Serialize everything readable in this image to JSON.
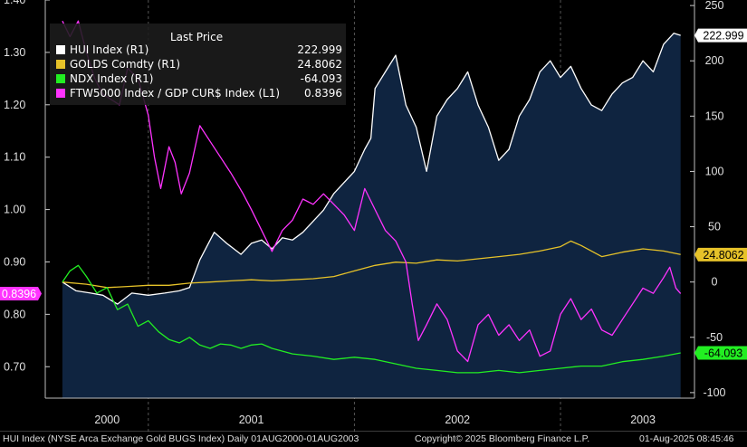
{
  "chart_data": {
    "type": "line",
    "left_axis": {
      "ticks": [
        "1.40",
        "1.30",
        "1.20",
        "1.10",
        "1.00",
        "0.90",
        "0.80",
        "0.70"
      ],
      "ylim": [
        0.64,
        1.4
      ]
    },
    "right_axis": {
      "ticks": [
        "250",
        "200",
        "150",
        "100",
        "50",
        "0",
        "-50",
        "-100"
      ],
      "ylim": [
        -105,
        255
      ]
    },
    "x_labels": [
      "2000",
      "2001",
      "2002",
      "2003"
    ],
    "legend": {
      "header": "Last Price",
      "items": [
        {
          "label": "HUI Index  (R1)",
          "value": "222.999",
          "color": "#ffffff"
        },
        {
          "label": "GOLDS Comdty  (R1)",
          "value": "24.8062",
          "color": "#e6c229"
        },
        {
          "label": "NDX Index  (R1)",
          "value": "-64.093",
          "color": "#22ee22"
        },
        {
          "label": "FTW5000 Index / GDP CUR$ Index  (L1)",
          "value": "0.8396",
          "color": "#ff33ff"
        }
      ]
    },
    "badges": [
      {
        "text": "222.999",
        "bg": "#ffffff",
        "fg": "#000000"
      },
      {
        "text": "24.8062",
        "bg": "#e6c229",
        "fg": "#000000"
      },
      {
        "text": "-64.093",
        "bg": "#22ee22",
        "fg": "#000000"
      },
      {
        "text": "0.8396",
        "bg": "#ff33ff",
        "fg": "#ffffff"
      }
    ],
    "series": [
      {
        "name": "HUI Index",
        "axis": "right",
        "color": "#ffffff",
        "fill": "#0f2440",
        "x": [
          2000.583,
          2000.65,
          2000.72,
          2000.78,
          2000.85,
          2000.92,
          2001.0,
          2001.08,
          2001.15,
          2001.2,
          2001.25,
          2001.32,
          2001.38,
          2001.45,
          2001.5,
          2001.55,
          2001.6,
          2001.65,
          2001.7,
          2001.75,
          2001.8,
          2001.85,
          2001.9,
          2001.95,
          2002.0,
          2002.05,
          2002.08,
          2002.1,
          2002.15,
          2002.2,
          2002.25,
          2002.3,
          2002.35,
          2002.4,
          2002.45,
          2002.5,
          2002.55,
          2002.6,
          2002.65,
          2002.7,
          2002.75,
          2002.8,
          2002.85,
          2002.9,
          2002.95,
          2003.0,
          2003.05,
          2003.1,
          2003.15,
          2003.2,
          2003.25,
          2003.3,
          2003.35,
          2003.4,
          2003.45,
          2003.5,
          2003.55,
          2003.583
        ],
        "y": [
          0,
          -8,
          -10,
          -12,
          -20,
          -10,
          -12,
          -10,
          -8,
          -5,
          20,
          45,
          35,
          25,
          35,
          38,
          30,
          40,
          38,
          45,
          55,
          65,
          80,
          90,
          100,
          120,
          130,
          175,
          190,
          205,
          160,
          140,
          100,
          150,
          165,
          175,
          190,
          160,
          140,
          110,
          120,
          150,
          165,
          190,
          200,
          185,
          195,
          175,
          160,
          155,
          170,
          180,
          185,
          200,
          190,
          215,
          225,
          222.999
        ]
      },
      {
        "name": "GOLDS Comdty",
        "axis": "right",
        "color": "#e6c229",
        "x": [
          2000.583,
          2000.7,
          2000.8,
          2000.9,
          2001.0,
          2001.1,
          2001.2,
          2001.3,
          2001.4,
          2001.5,
          2001.6,
          2001.7,
          2001.8,
          2001.9,
          2002.0,
          2002.1,
          2002.2,
          2002.3,
          2002.4,
          2002.5,
          2002.6,
          2002.7,
          2002.8,
          2002.9,
          2003.0,
          2003.05,
          2003.1,
          2003.2,
          2003.3,
          2003.4,
          2003.5,
          2003.583
        ],
        "y": [
          0,
          -2,
          -5,
          -4,
          -3,
          -3,
          -1,
          0,
          1,
          2,
          1,
          2,
          3,
          5,
          10,
          15,
          18,
          17,
          20,
          19,
          21,
          23,
          25,
          28,
          32,
          37,
          33,
          23,
          27,
          30,
          28,
          24.8062
        ]
      },
      {
        "name": "NDX Index",
        "axis": "right",
        "color": "#22ee22",
        "x": [
          2000.583,
          2000.62,
          2000.66,
          2000.7,
          2000.75,
          2000.8,
          2000.85,
          2000.9,
          2000.95,
          2001.0,
          2001.05,
          2001.1,
          2001.15,
          2001.2,
          2001.25,
          2001.3,
          2001.35,
          2001.4,
          2001.45,
          2001.5,
          2001.55,
          2001.6,
          2001.7,
          2001.8,
          2001.9,
          2002.0,
          2002.1,
          2002.2,
          2002.3,
          2002.4,
          2002.5,
          2002.6,
          2002.7,
          2002.8,
          2002.9,
          2003.0,
          2003.1,
          2003.2,
          2003.3,
          2003.4,
          2003.5,
          2003.583
        ],
        "y": [
          0,
          10,
          15,
          5,
          -10,
          -5,
          -25,
          -20,
          -40,
          -35,
          -45,
          -52,
          -55,
          -50,
          -57,
          -60,
          -56,
          -57,
          -60,
          -57,
          -56,
          -60,
          -65,
          -67,
          -70,
          -68,
          -70,
          -74,
          -78,
          -80,
          -82,
          -82,
          -80,
          -82,
          -80,
          -78,
          -76,
          -76,
          -72,
          -70,
          -67,
          -64.093
        ]
      },
      {
        "name": "FTW5000 Index / GDP CUR$ Index",
        "axis": "left",
        "color": "#ff33ff",
        "x": [
          2000.583,
          2000.62,
          2000.66,
          2000.7,
          2000.74,
          2000.78,
          2000.82,
          2000.86,
          2000.9,
          2000.95,
          2001.0,
          2001.03,
          2001.06,
          2001.1,
          2001.13,
          2001.16,
          2001.2,
          2001.25,
          2001.3,
          2001.35,
          2001.4,
          2001.43,
          2001.46,
          2001.5,
          2001.55,
          2001.6,
          2001.65,
          2001.7,
          2001.75,
          2001.8,
          2001.85,
          2001.9,
          2001.95,
          2002.0,
          2002.05,
          2002.1,
          2002.15,
          2002.2,
          2002.25,
          2002.28,
          2002.31,
          2002.35,
          2002.4,
          2002.45,
          2002.5,
          2002.55,
          2002.6,
          2002.65,
          2002.7,
          2002.75,
          2002.8,
          2002.85,
          2002.9,
          2002.95,
          2003.0,
          2003.05,
          2003.1,
          2003.15,
          2003.2,
          2003.25,
          2003.3,
          2003.35,
          2003.4,
          2003.45,
          2003.5,
          2003.53,
          2003.56,
          2003.583
        ],
        "y": [
          1.36,
          1.33,
          1.36,
          1.3,
          1.25,
          1.22,
          1.21,
          1.2,
          1.27,
          1.25,
          1.18,
          1.1,
          1.04,
          1.12,
          1.09,
          1.03,
          1.07,
          1.16,
          1.13,
          1.1,
          1.07,
          1.05,
          1.03,
          1.0,
          0.96,
          0.92,
          0.96,
          0.98,
          1.02,
          1.01,
          1.03,
          1.01,
          0.99,
          0.96,
          1.04,
          1.0,
          0.96,
          0.94,
          0.9,
          0.82,
          0.75,
          0.78,
          0.82,
          0.79,
          0.73,
          0.71,
          0.78,
          0.8,
          0.76,
          0.78,
          0.75,
          0.77,
          0.72,
          0.73,
          0.8,
          0.83,
          0.79,
          0.81,
          0.77,
          0.76,
          0.79,
          0.82,
          0.85,
          0.84,
          0.87,
          0.89,
          0.85,
          0.8396
        ]
      }
    ]
  },
  "footer": {
    "left": "HUI Index (NYSE Arca Exchange Gold BUGS Index)  Daily 01AUG2000-01AUG2003",
    "center": "Copyright© 2025 Bloomberg Finance L.P.",
    "right": "01-Aug-2025 08:45:46"
  }
}
